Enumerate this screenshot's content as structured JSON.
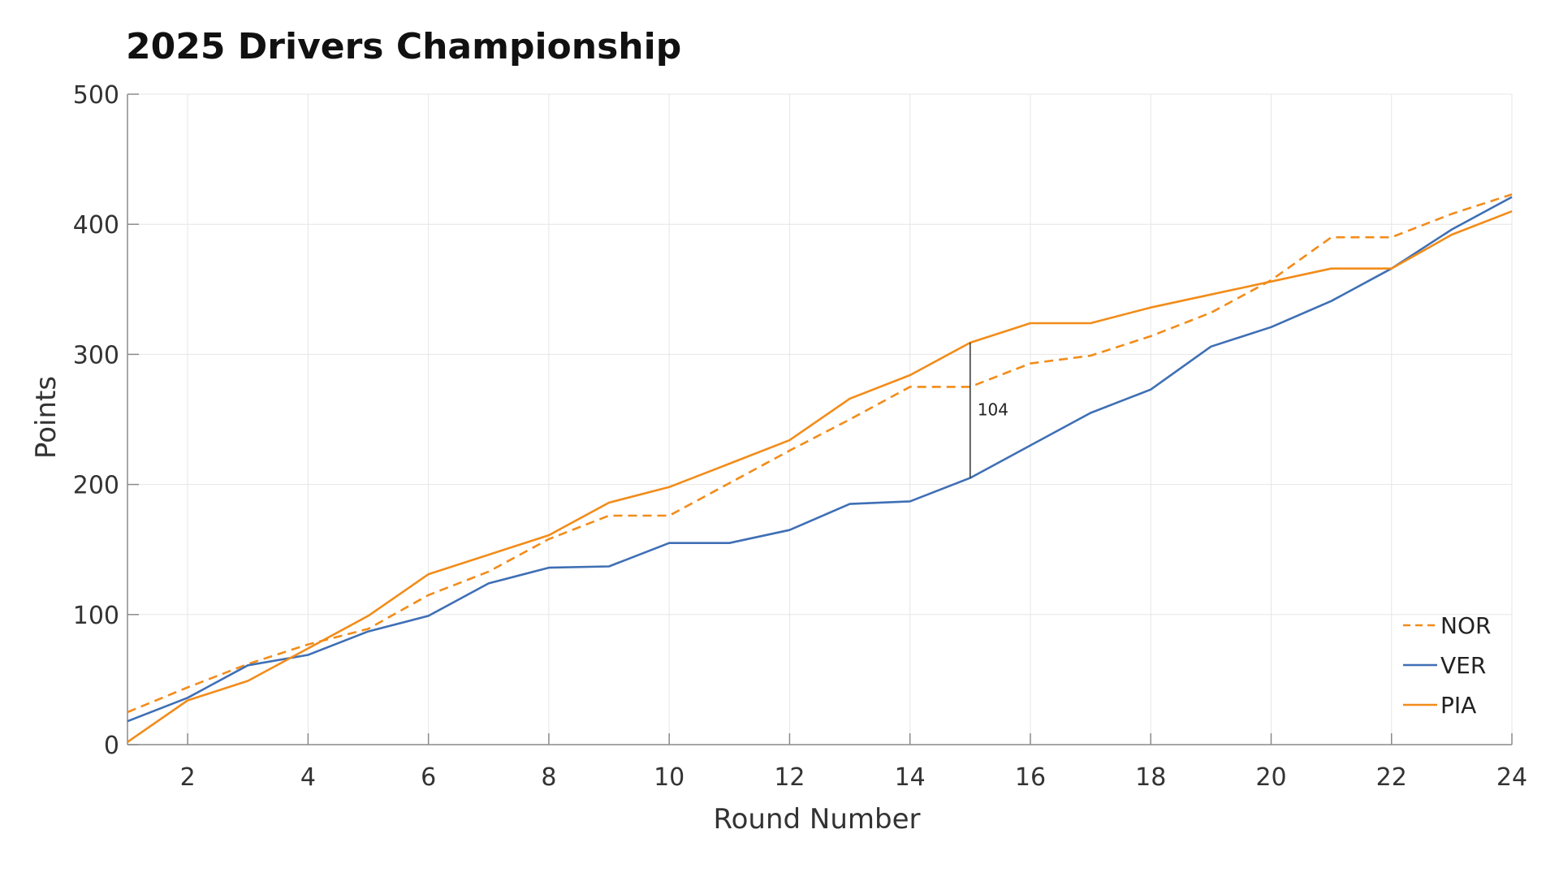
{
  "colors": {
    "nor": "#F28C1A",
    "ver": "#3F6FB5",
    "pia": "#F28C1A",
    "grid": "#E6E6E6",
    "axis": "#8A8A8A",
    "annotation": "#333333"
  },
  "chart_data": {
    "type": "line",
    "title": "2025 Drivers Championship",
    "xlabel": "Round Number",
    "ylabel": "Points",
    "xlim": [
      1,
      24
    ],
    "ylim": [
      0,
      500
    ],
    "xticks": [
      2,
      4,
      6,
      8,
      10,
      12,
      14,
      16,
      18,
      20,
      22,
      24
    ],
    "yticks": [
      0,
      100,
      200,
      300,
      400,
      500
    ],
    "grid": true,
    "legend_position": "bottom-right",
    "series": [
      {
        "name": "NOR",
        "style": "dashed",
        "color": "#F28C1A",
        "x": [
          1,
          2,
          3,
          4,
          5,
          6,
          7,
          8,
          9,
          10,
          11,
          12,
          13,
          14,
          15,
          16,
          17,
          18,
          19,
          20,
          21,
          22,
          23,
          24
        ],
        "values": [
          25,
          44,
          62,
          77,
          89,
          115,
          133,
          158,
          176,
          176,
          201,
          226,
          250,
          275,
          275,
          293,
          299,
          314,
          332,
          357,
          390,
          390,
          408,
          423
        ]
      },
      {
        "name": "VER",
        "style": "solid",
        "color": "#3F6FB5",
        "x": [
          1,
          2,
          3,
          4,
          5,
          6,
          7,
          8,
          9,
          10,
          11,
          12,
          13,
          14,
          15,
          16,
          17,
          18,
          19,
          20,
          21,
          22,
          23,
          24
        ],
        "values": [
          18,
          36,
          61,
          69,
          87,
          99,
          124,
          136,
          137,
          155,
          155,
          165,
          185,
          187,
          205,
          230,
          255,
          273,
          306,
          321,
          341,
          366,
          396,
          421
        ]
      },
      {
        "name": "PIA",
        "style": "solid",
        "color": "#F28C1A",
        "x": [
          1,
          2,
          3,
          4,
          5,
          6,
          7,
          8,
          9,
          10,
          11,
          12,
          13,
          14,
          15,
          16,
          17,
          18,
          19,
          20,
          21,
          22,
          23,
          24
        ],
        "values": [
          2,
          34,
          49,
          74,
          99,
          131,
          146,
          161,
          186,
          198,
          216,
          234,
          266,
          284,
          309,
          324,
          324,
          336,
          346,
          356,
          366,
          366,
          392,
          410
        ]
      }
    ],
    "annotations": [
      {
        "x": 15,
        "y_from": 205,
        "y_to": 309,
        "text": "104"
      }
    ]
  }
}
